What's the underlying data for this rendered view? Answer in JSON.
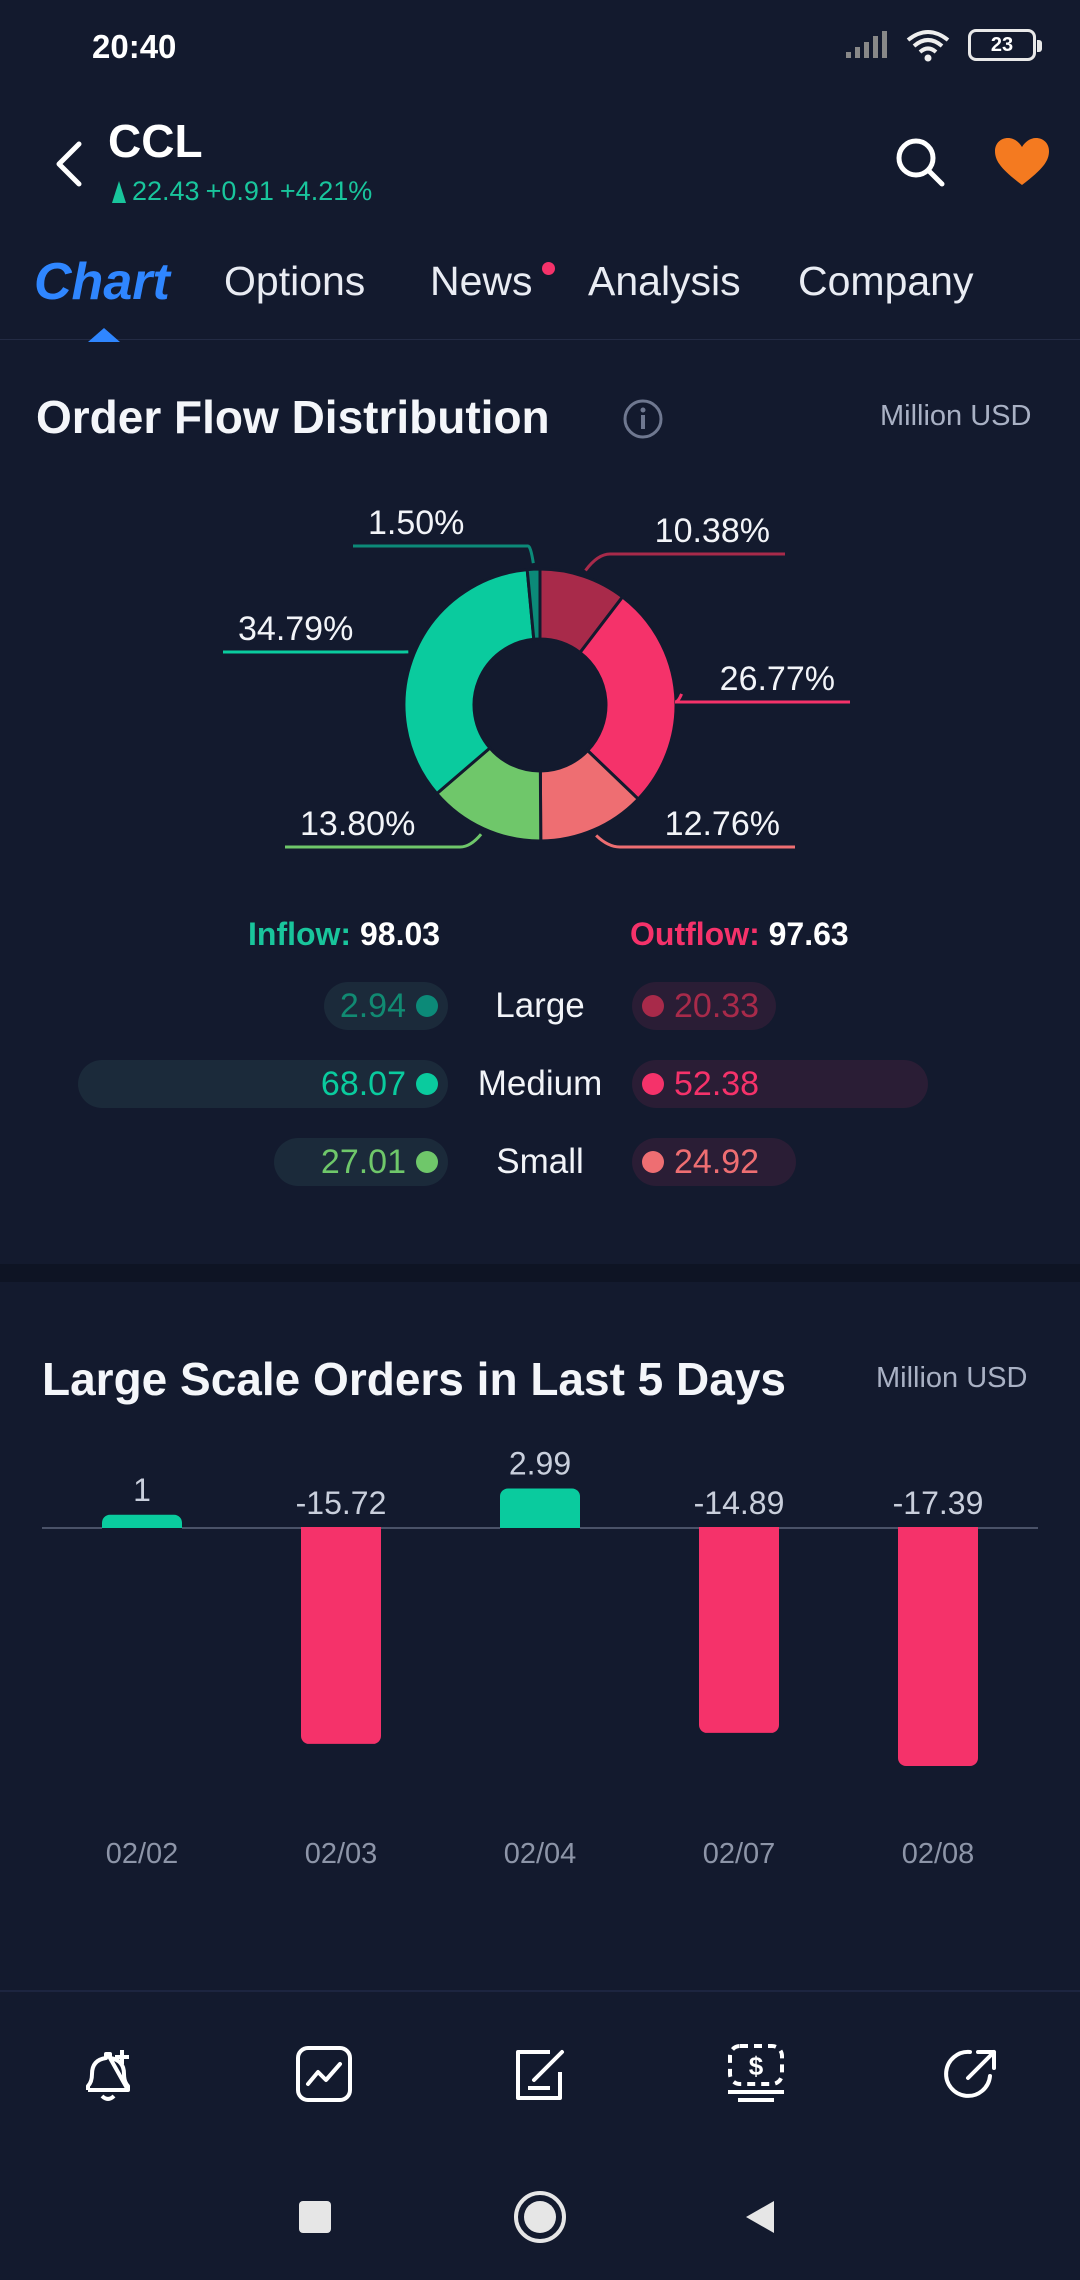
{
  "status": {
    "time": "20:40",
    "battery": "23"
  },
  "header": {
    "ticker": "CCL",
    "price": "22.43",
    "change": "+0.91",
    "change_pct": "+4.21%"
  },
  "tabs": [
    {
      "label": "Chart"
    },
    {
      "label": "Options"
    },
    {
      "label": "News"
    },
    {
      "label": "Analysis"
    },
    {
      "label": "Company"
    }
  ],
  "order_flow": {
    "title": "Order Flow Distribution",
    "unit": "Million USD",
    "inflow_label": "Inflow:",
    "inflow_total": "98.03",
    "outflow_label": "Outflow:",
    "outflow_total": "97.63",
    "rows": [
      {
        "label": "Large",
        "inflow": "2.94",
        "outflow": "20.33"
      },
      {
        "label": "Medium",
        "inflow": "68.07",
        "outflow": "52.38"
      },
      {
        "label": "Small",
        "inflow": "27.01",
        "outflow": "24.92"
      }
    ]
  },
  "chart_data": [
    {
      "type": "pie",
      "title": "Order Flow Distribution",
      "categories": [
        "Outflow Large",
        "Outflow Medium",
        "Outflow Small",
        "Inflow Small",
        "Inflow Medium",
        "Inflow Large"
      ],
      "values": [
        10.38,
        26.77,
        12.76,
        13.8,
        34.79,
        1.5
      ],
      "labels": [
        "10.38%",
        "26.77%",
        "12.76%",
        "13.80%",
        "34.79%",
        "1.50%"
      ],
      "colors": [
        "#a82a4a",
        "#f5326a",
        "#ee6e72",
        "#6fc76a",
        "#0acb9e",
        "#0c8a78"
      ]
    },
    {
      "type": "bar",
      "title": "Large Scale Orders in Last 5 Days",
      "ylabel": "Million USD",
      "categories": [
        "02/02",
        "02/03",
        "02/04",
        "02/07",
        "02/08"
      ],
      "values": [
        1,
        -15.72,
        2.99,
        -14.89,
        -17.39
      ],
      "labels": [
        "1",
        "-15.72",
        "2.99",
        "-14.89",
        "-17.39"
      ],
      "positive_color": "#0acb9e",
      "negative_color": "#f5326a"
    }
  ],
  "large_orders": {
    "title": "Large Scale Orders in Last 5 Days",
    "unit": "Million USD"
  },
  "colors": {
    "background": "#131a2e",
    "accent_blue": "#2f86ff",
    "up_green": "#19c59c",
    "down_red": "#f5326a",
    "favorite_orange": "#f47a20"
  },
  "bottom_actions": [
    {
      "icon": "add-alert-icon"
    },
    {
      "icon": "trend-chart-icon"
    },
    {
      "icon": "edit-note-icon"
    },
    {
      "icon": "trade-dollar-icon"
    },
    {
      "icon": "share-icon"
    }
  ]
}
